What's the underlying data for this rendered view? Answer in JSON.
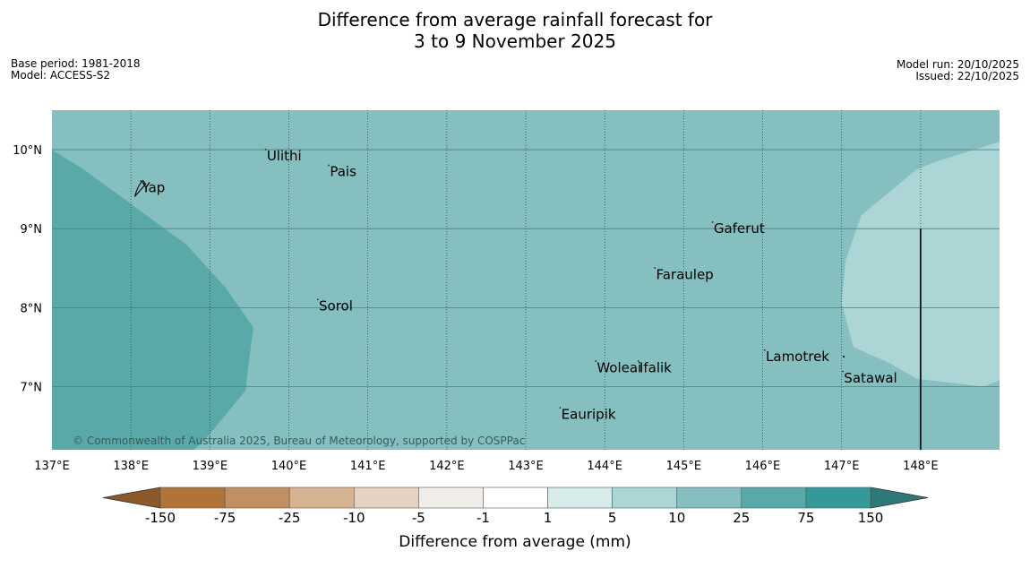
{
  "title": {
    "line1": "Difference from average rainfall forecast for",
    "line2": "3 to 9 November 2025"
  },
  "meta_left": {
    "base_period": "Base period: 1981-2018",
    "model": "Model: ACCESS-S2"
  },
  "meta_right": {
    "model_run": "Model run: 20/10/2025",
    "issued": "Issued: 22/10/2025"
  },
  "map": {
    "lon_range": [
      137,
      149
    ],
    "lat_range": [
      6.2,
      10.5
    ],
    "lon_ticks": [
      "137°E",
      "138°E",
      "139°E",
      "140°E",
      "141°E",
      "142°E",
      "143°E",
      "144°E",
      "145°E",
      "146°E",
      "147°E",
      "148°E"
    ],
    "lat_ticks": [
      "10°N",
      "9°N",
      "8°N",
      "7°N"
    ],
    "places": [
      {
        "name": "Ulithi",
        "lon": 139.72,
        "lat": 9.92
      },
      {
        "name": "Pais",
        "lon": 140.52,
        "lat": 9.72
      },
      {
        "name": "Yap",
        "lon": 138.14,
        "lat": 9.52
      },
      {
        "name": "Gaferut",
        "lon": 145.38,
        "lat": 9.0
      },
      {
        "name": "Faraulep",
        "lon": 144.65,
        "lat": 8.42
      },
      {
        "name": "Sorol",
        "lon": 140.38,
        "lat": 8.02
      },
      {
        "name": "Lamotrek",
        "lon": 146.04,
        "lat": 7.38
      },
      {
        "name": "Woleai",
        "lon": 143.9,
        "lat": 7.24
      },
      {
        "name": "Ifalik",
        "lon": 144.44,
        "lat": 7.24
      },
      {
        "name": "Satawal",
        "lon": 147.03,
        "lat": 7.11
      },
      {
        "name": "Eauripik",
        "lon": 143.45,
        "lat": 6.65
      }
    ],
    "copyright": "© Commonwealth of Australia 2025, Bureau of Meteorology, supported by COSPPac",
    "colors": {
      "base": "#86bfbf",
      "higher": "#5aa9a9",
      "lower": "#acd6d6"
    }
  },
  "colorbar": {
    "title": "Difference from average (mm)",
    "labels": [
      "-150",
      "-75",
      "-25",
      "-10",
      "-5",
      "-1",
      "1",
      "5",
      "10",
      "25",
      "75",
      "150"
    ],
    "colors": [
      "#b07339",
      "#c08f62",
      "#d6b391",
      "#e6d2c0",
      "#f0ece7",
      "#ffffff",
      "#d7ebeb",
      "#acd6d6",
      "#86bfbf",
      "#5aa9a9",
      "#349999"
    ],
    "extend_low_color": "#8c5a2a",
    "extend_high_color": "#2e7a7a"
  }
}
